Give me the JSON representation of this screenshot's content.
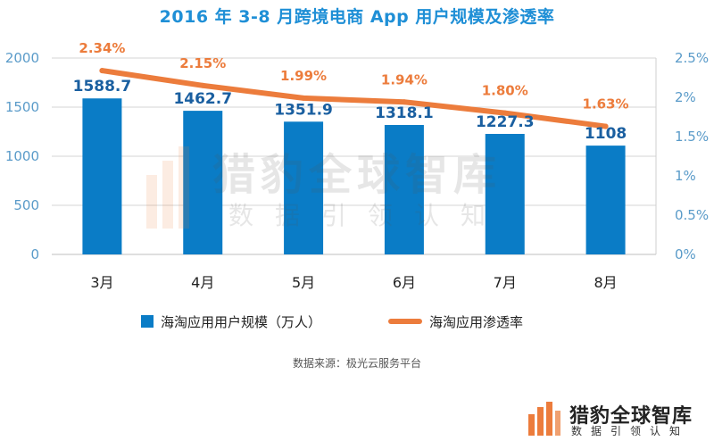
{
  "chart_data": {
    "type": "bar+line",
    "title": "2016 年 3-8 月跨境电商 App 用户规模及渗透率",
    "categories": [
      "3月",
      "4月",
      "5月",
      "6月",
      "7月",
      "8月"
    ],
    "series": [
      {
        "name": "海淘应用用户规模（万人）",
        "type": "bar",
        "axis": "left",
        "color": "#0a7cc6",
        "values": [
          1588.7,
          1462.7,
          1351.9,
          1318.1,
          1227.3,
          1108
        ],
        "labels": [
          "1588.7",
          "1462.7",
          "1351.9",
          "1318.1",
          "1227.3",
          "1108"
        ]
      },
      {
        "name": "海淘应用渗透率",
        "type": "line",
        "axis": "right",
        "color": "#ec7c3c",
        "values": [
          2.34,
          2.15,
          1.99,
          1.94,
          1.8,
          1.63
        ],
        "labels": [
          "2.34%",
          "2.15%",
          "1.99%",
          "1.94%",
          "1.80%",
          "1.63%"
        ]
      }
    ],
    "y_left": {
      "min": 0,
      "max": 2000,
      "ticks": [
        0,
        500,
        1000,
        1500,
        2000
      ],
      "tick_labels": [
        "0",
        "500",
        "1000",
        "1500",
        "2000"
      ]
    },
    "y_right": {
      "min": 0,
      "max": 2.5,
      "ticks": [
        0,
        0.5,
        1,
        1.5,
        2,
        2.5
      ],
      "tick_labels": [
        "0%",
        "0.5%",
        "1%",
        "1.5%",
        "2%",
        "2.5%"
      ]
    },
    "grid": true,
    "legend": "bottom",
    "source": "数据来源：极光云服务平台"
  },
  "colors": {
    "bar": "#0a7cc6",
    "line": "#ec7c3c",
    "title": "#1f8fd6",
    "bar_label": "#1a5fa0",
    "line_label": "#ec7c3c",
    "axis_label": "#5a9bc9",
    "grid": "#d6d6d6"
  },
  "watermark": {
    "main": "猎豹全球智库",
    "sub": "数据引领认知"
  },
  "logo": {
    "main": "猎豹全球智库",
    "sub": "数据引领认知"
  }
}
